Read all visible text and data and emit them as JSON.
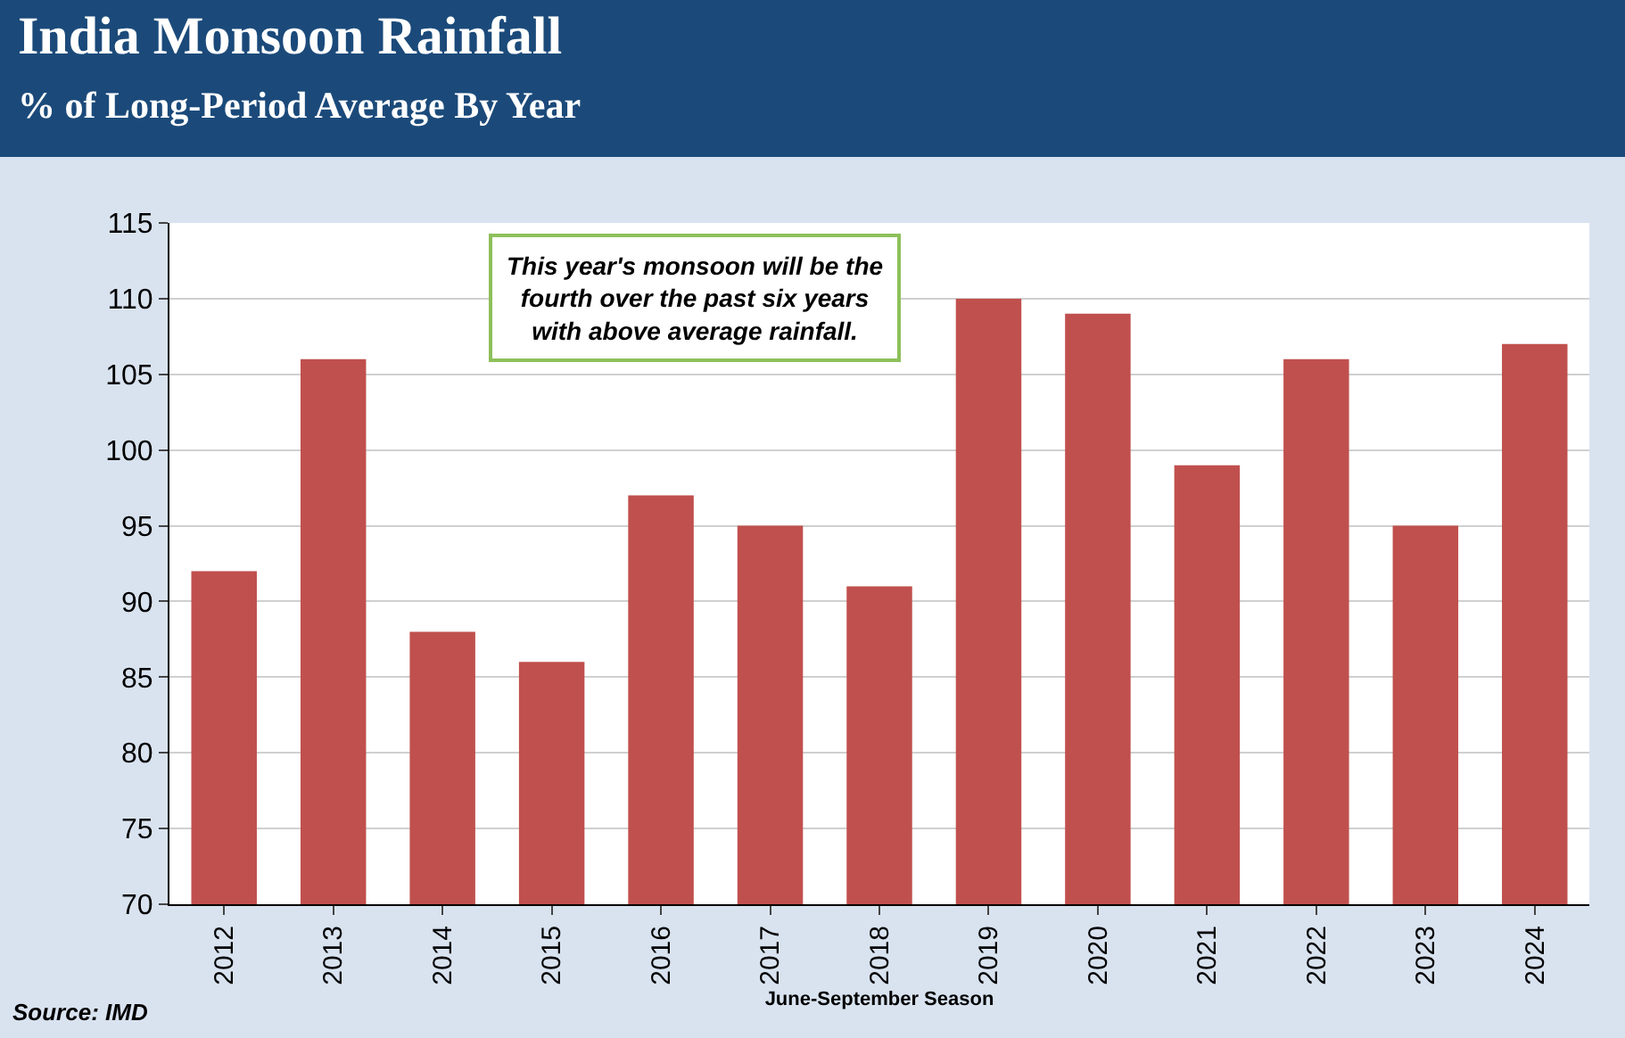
{
  "chart_data": {
    "type": "bar",
    "title": "India Monsoon Rainfall",
    "subtitle": "% of Long-Period Average By Year",
    "xlabel": "June-September Season",
    "categories": [
      "2012",
      "2013",
      "2014",
      "2015",
      "2016",
      "2017",
      "2018",
      "2019",
      "2020",
      "2021",
      "2022",
      "2023",
      "2024"
    ],
    "values": [
      92,
      106,
      88,
      86,
      97,
      95,
      91,
      110,
      109,
      99,
      106,
      95,
      107
    ],
    "color": "#c0504d",
    "ylim": [
      70,
      115
    ],
    "yticks": [
      70,
      75,
      80,
      85,
      90,
      95,
      100,
      105,
      110,
      115
    ],
    "grid": "y",
    "legend": false,
    "annotations": [
      "This year's monsoon will be the fourth over the past six years with above average rainfall.",
      "Source: IMD"
    ]
  }
}
